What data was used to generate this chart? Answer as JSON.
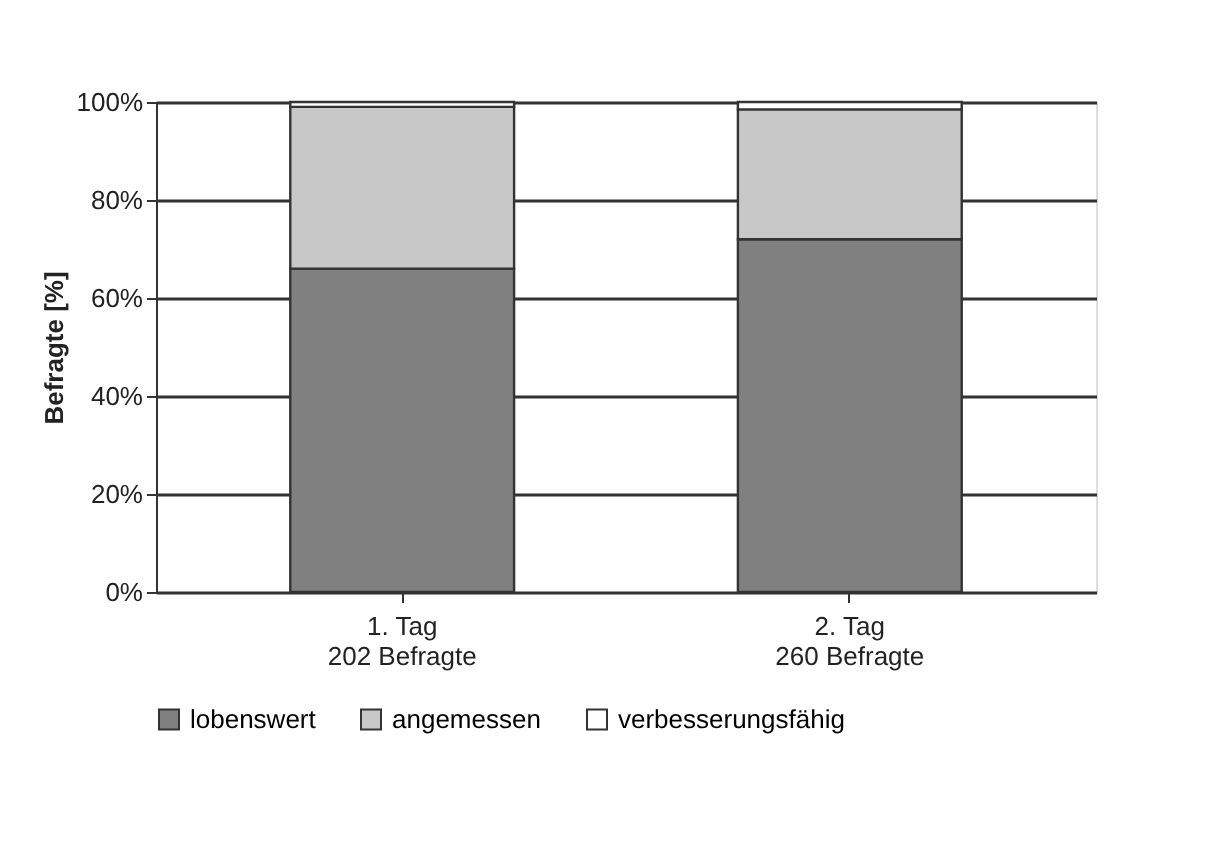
{
  "chart_data": {
    "type": "bar",
    "stacked": true,
    "ylabel": "Befragte [%]",
    "categories": [
      "1. Tag\n202 Befragte",
      "2. Tag\n260 Befragte"
    ],
    "series": [
      {
        "name": "lobenswert",
        "color": "#808080",
        "values": [
          66,
          72
        ]
      },
      {
        "name": "angemessen",
        "color": "#c8c8c8",
        "values": [
          33,
          26.5
        ]
      },
      {
        "name": "verbesserungsfähig",
        "color": "#ffffff",
        "values": [
          1,
          1.5
        ]
      }
    ],
    "ylim": [
      0,
      100
    ],
    "yticks": [
      {
        "value": 0,
        "label": "0%"
      },
      {
        "value": 20,
        "label": "20%"
      },
      {
        "value": 40,
        "label": "40%"
      },
      {
        "value": 60,
        "label": "60%"
      },
      {
        "value": 80,
        "label": "80%"
      },
      {
        "value": 100,
        "label": "100%"
      }
    ],
    "grid": "y",
    "legend": "bottom"
  }
}
